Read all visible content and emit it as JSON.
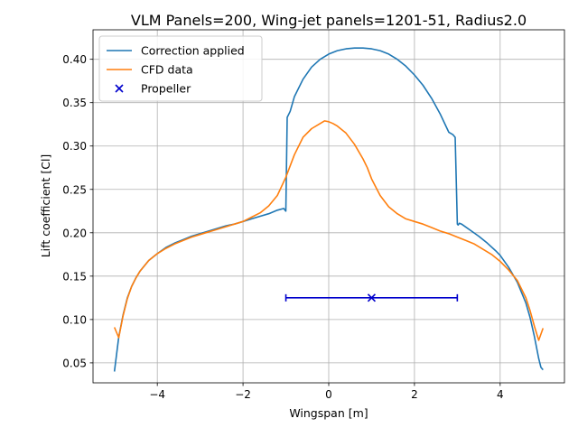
{
  "chart_data": {
    "type": "line",
    "title": "VLM Panels=200, Wing-jet panels=1201-51, Radius2.0",
    "xlabel": "Wingspan [m]",
    "ylabel": "Lift coefficient [Cl]",
    "xlim": [
      -5.5,
      5.5
    ],
    "ylim": [
      0.027,
      0.434
    ],
    "xticks": [
      -4,
      -2,
      0,
      2,
      4
    ],
    "xtick_labels": [
      "−4",
      "−2",
      "0",
      "2",
      "4"
    ],
    "yticks": [
      0.05,
      0.1,
      0.15,
      0.2,
      0.25,
      0.3,
      0.35,
      0.4
    ],
    "ytick_labels": [
      "0.05",
      "0.10",
      "0.15",
      "0.20",
      "0.25",
      "0.30",
      "0.35",
      "0.40"
    ],
    "grid": true,
    "legend_position": "top-left",
    "series": [
      {
        "name": "Correction applied",
        "color": "#1f77b4",
        "x": [
          -5.0,
          -4.95,
          -4.9,
          -4.8,
          -4.7,
          -4.6,
          -4.5,
          -4.4,
          -4.2,
          -4.0,
          -3.8,
          -3.6,
          -3.4,
          -3.2,
          -3.0,
          -2.8,
          -2.6,
          -2.4,
          -2.2,
          -2.0,
          -1.8,
          -1.6,
          -1.4,
          -1.2,
          -1.05,
          -1.02,
          -1.0,
          -0.97,
          -0.9,
          -0.8,
          -0.6,
          -0.4,
          -0.2,
          0.0,
          0.2,
          0.4,
          0.6,
          0.8,
          1.0,
          1.2,
          1.4,
          1.6,
          1.8,
          2.0,
          2.2,
          2.4,
          2.6,
          2.8,
          2.9,
          2.95,
          3.0,
          3.02,
          3.05,
          3.1,
          3.3,
          3.5,
          3.7,
          3.9,
          4.0,
          4.2,
          4.4,
          4.6,
          4.7,
          4.8,
          4.9,
          4.95,
          5.0
        ],
        "y": [
          0.04,
          0.06,
          0.08,
          0.105,
          0.125,
          0.138,
          0.148,
          0.156,
          0.168,
          0.176,
          0.183,
          0.188,
          0.192,
          0.196,
          0.199,
          0.202,
          0.205,
          0.208,
          0.21,
          0.213,
          0.216,
          0.219,
          0.222,
          0.226,
          0.228,
          0.226,
          0.225,
          0.333,
          0.34,
          0.357,
          0.377,
          0.391,
          0.4,
          0.406,
          0.41,
          0.412,
          0.413,
          0.413,
          0.412,
          0.41,
          0.406,
          0.4,
          0.392,
          0.382,
          0.37,
          0.355,
          0.337,
          0.316,
          0.313,
          0.31,
          0.21,
          0.209,
          0.211,
          0.21,
          0.203,
          0.196,
          0.188,
          0.179,
          0.174,
          0.16,
          0.143,
          0.119,
          0.102,
          0.08,
          0.055,
          0.045,
          0.042
        ]
      },
      {
        "name": "CFD data",
        "color": "#ff7f0e",
        "x": [
          -5.0,
          -4.9,
          -4.8,
          -4.7,
          -4.6,
          -4.5,
          -4.4,
          -4.2,
          -4.0,
          -3.8,
          -3.6,
          -3.4,
          -3.2,
          -3.0,
          -2.8,
          -2.6,
          -2.4,
          -2.2,
          -2.0,
          -1.8,
          -1.6,
          -1.4,
          -1.2,
          -1.0,
          -0.8,
          -0.6,
          -0.4,
          -0.2,
          -0.1,
          0.0,
          0.1,
          0.2,
          0.4,
          0.6,
          0.8,
          0.9,
          1.0,
          1.2,
          1.4,
          1.6,
          1.8,
          2.0,
          2.2,
          2.4,
          2.6,
          2.8,
          3.0,
          3.2,
          3.4,
          3.6,
          3.8,
          4.0,
          4.2,
          4.4,
          4.6,
          4.7,
          4.8,
          4.9,
          5.0
        ],
        "y": [
          0.091,
          0.079,
          0.104,
          0.124,
          0.138,
          0.148,
          0.156,
          0.168,
          0.176,
          0.182,
          0.187,
          0.191,
          0.195,
          0.198,
          0.201,
          0.204,
          0.207,
          0.21,
          0.213,
          0.218,
          0.223,
          0.231,
          0.243,
          0.264,
          0.29,
          0.31,
          0.32,
          0.326,
          0.329,
          0.328,
          0.326,
          0.323,
          0.315,
          0.302,
          0.285,
          0.275,
          0.262,
          0.243,
          0.23,
          0.222,
          0.216,
          0.213,
          0.21,
          0.206,
          0.202,
          0.199,
          0.195,
          0.191,
          0.187,
          0.181,
          0.175,
          0.167,
          0.157,
          0.145,
          0.125,
          0.11,
          0.092,
          0.076,
          0.09
        ]
      },
      {
        "name": "Propeller",
        "color": "#0000cc",
        "marker": "x",
        "x": [
          1.0
        ],
        "y": [
          0.125
        ],
        "xerr_range": [
          -1.0,
          3.0
        ]
      }
    ]
  }
}
